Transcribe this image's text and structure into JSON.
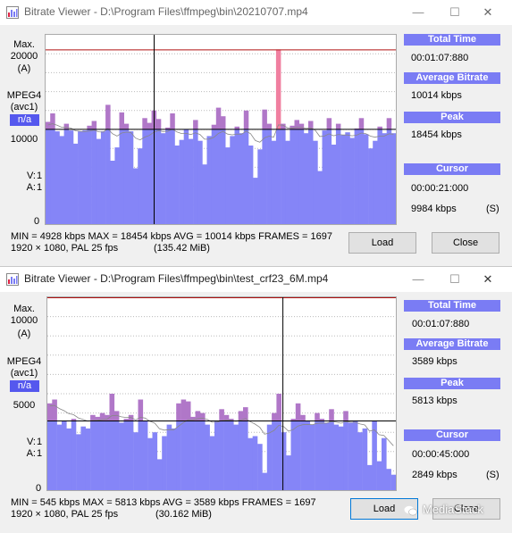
{
  "watermark": "MediaStack",
  "windows": [
    {
      "title": "Bitrate Viewer - D:\\Program Files\\ffmpeg\\bin\\20210707.mp4",
      "minimize": "—",
      "maximize": "☐",
      "close": "✕",
      "y_axis": {
        "max_label": "Max.",
        "max_value": "20000",
        "unit": "(A)",
        "mid_value": "10000",
        "zero": "0"
      },
      "codec": {
        "name": "MPEG4",
        "sub": "(avc1)",
        "badge": "n/a"
      },
      "va": {
        "v_label": "V:",
        "v_value": "1",
        "a_label": "A:",
        "a_value": "1"
      },
      "chart_data": {
        "type": "bar",
        "scale_max": 20000,
        "max_line": 18454,
        "avg_line": 10014,
        "grid_steps": 10,
        "cursor_pos": 0.31,
        "values": [
          10800,
          11700,
          9800,
          9300,
          10600,
          9900,
          8500,
          9800,
          9900,
          10400,
          10900,
          9000,
          9800,
          12600,
          6700,
          8100,
          11800,
          10600,
          9800,
          5900,
          8000,
          11200,
          10700,
          12000,
          11100,
          9600,
          10200,
          11700,
          8300,
          8900,
          10000,
          9000,
          11000,
          8800,
          6300,
          9300,
          10500,
          12300,
          11400,
          8100,
          9300,
          10300,
          9600,
          12000,
          8300,
          4900,
          7900,
          12100,
          10600,
          8800,
          18454,
          10600,
          8800,
          10400,
          11000,
          10600,
          9600,
          10900,
          8800,
          5600,
          9900,
          11200,
          8400,
          10600,
          9400,
          9700,
          9100,
          10100,
          11200,
          9500,
          8000,
          8800,
          10300,
          9600,
          11200,
          9600
        ]
      },
      "panel": {
        "total_time_label": "Total Time",
        "total_time": "00:01:07:880",
        "avg_label": "Average Bitrate",
        "avg": "10014 kbps",
        "peak_label": "Peak",
        "peak": "18454 kbps",
        "cursor_label": "Cursor",
        "cursor_time": "00:00:21:000",
        "cursor_rate": "9984 kbps",
        "cursor_tag": "(S)"
      },
      "stats": {
        "line1": "MIN = 4928 kbps  MAX = 18454 kbps  AVG = 10014 kbps  FRAMES = 1697",
        "line2": "1920 × 1080, PAL 25 fps",
        "size": "(135.42 MiB)"
      },
      "load": "Load",
      "close_btn": "Close"
    },
    {
      "title": "Bitrate Viewer - D:\\Program Files\\ffmpeg\\bin\\test_crf23_6M.mp4",
      "minimize": "—",
      "maximize": "☐",
      "close": "✕",
      "y_axis": {
        "max_label": "Max.",
        "max_value": "10000",
        "unit": "(A)",
        "mid_value": "5000",
        "zero": "0"
      },
      "codec": {
        "name": "MPEG4",
        "sub": "(avc1)",
        "badge": "n/a"
      },
      "va": {
        "v_label": "V:",
        "v_value": "1",
        "a_label": "A:",
        "a_value": "1"
      },
      "chart_data": {
        "type": "bar",
        "scale_max": 10000,
        "max_line": 10000,
        "avg_line": 3589,
        "grid_steps": 10,
        "cursor_pos": 0.676,
        "values": [
          4500,
          4700,
          3400,
          3600,
          3200,
          3700,
          2900,
          3300,
          3200,
          3900,
          3800,
          4000,
          3900,
          5000,
          4100,
          3500,
          3700,
          3900,
          3000,
          4700,
          3600,
          2700,
          3000,
          1600,
          2800,
          3400,
          3200,
          4500,
          4700,
          4600,
          3800,
          4100,
          4000,
          3400,
          2800,
          3600,
          4200,
          3900,
          3700,
          3400,
          4100,
          4300,
          2700,
          2800,
          2400,
          900,
          3400,
          4000,
          5000,
          3000,
          1800,
          3700,
          4500,
          3900,
          3600,
          3400,
          4000,
          3700,
          3500,
          4200,
          3400,
          3300,
          4100,
          3500,
          3600,
          3000,
          3200,
          1300,
          3600,
          1500,
          2700,
          1100,
          800
        ]
      },
      "panel": {
        "total_time_label": "Total Time",
        "total_time": "00:01:07:880",
        "avg_label": "Average Bitrate",
        "avg": "3589 kbps",
        "peak_label": "Peak",
        "peak": "5813 kbps",
        "cursor_label": "Cursor",
        "cursor_time": "00:00:45:000",
        "cursor_rate": "2849 kbps",
        "cursor_tag": "(S)"
      },
      "stats": {
        "line1": "MIN = 545 kbps  MAX = 5813 kbps  AVG = 3589 kbps  FRAMES = 1697",
        "line2": "1920 × 1080, PAL 25 fps",
        "size": "(30.162 MiB)"
      },
      "load": "Load",
      "close_btn": "Close"
    }
  ]
}
